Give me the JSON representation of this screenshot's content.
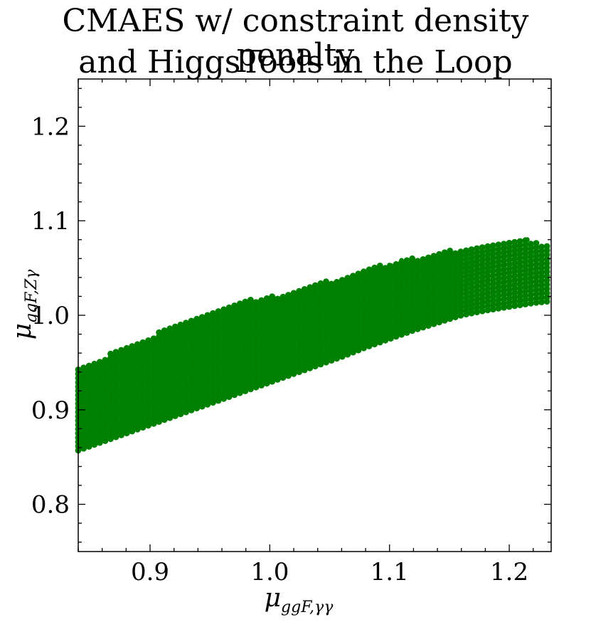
{
  "chart_data": {
    "type": "scatter",
    "title_lines": [
      "CMAES w/ constraint density penalty",
      "and HiggsTools in the Loop"
    ],
    "xlabel_main": "μ",
    "xlabel_sub": "ggF,γγ",
    "ylabel_main": "μ",
    "ylabel_sub": "ggF,Zγ",
    "xlim": [
      0.84,
      1.235
    ],
    "ylim": [
      0.75,
      1.25
    ],
    "xticks": [
      0.9,
      1.0,
      1.1,
      1.2
    ],
    "yticks": [
      0.8,
      0.9,
      1.0,
      1.1,
      1.2
    ],
    "xtick_labels": [
      "0.9",
      "1.0",
      "1.1",
      "1.2"
    ],
    "ytick_labels": [
      "0.8",
      "0.9",
      "1.0",
      "1.1",
      "1.2"
    ],
    "grid": false,
    "marker_color": "#008000",
    "series": [
      {
        "points_upper_edge": [
          [
            0.84,
            0.943
          ],
          [
            0.86,
            0.955
          ],
          [
            0.88,
            0.967
          ],
          [
            0.9,
            0.978
          ],
          [
            0.92,
            0.99
          ],
          [
            0.94,
            1.0
          ],
          [
            0.96,
            1.01
          ],
          [
            0.98,
            1.016
          ],
          [
            1.0,
            1.02
          ],
          [
            1.02,
            1.025
          ],
          [
            1.04,
            1.033
          ],
          [
            1.06,
            1.041
          ],
          [
            1.08,
            1.049
          ],
          [
            1.1,
            1.055
          ],
          [
            1.12,
            1.061
          ],
          [
            1.14,
            1.066
          ],
          [
            1.16,
            1.071
          ],
          [
            1.18,
            1.076
          ],
          [
            1.2,
            1.08
          ],
          [
            1.21,
            1.081
          ],
          [
            1.22,
            1.077
          ],
          [
            1.235,
            1.075
          ]
        ],
        "points_lower_edge": [
          [
            0.84,
            0.857
          ],
          [
            0.86,
            0.866
          ],
          [
            0.88,
            0.875
          ],
          [
            0.9,
            0.884
          ],
          [
            0.92,
            0.893
          ],
          [
            0.94,
            0.902
          ],
          [
            0.96,
            0.911
          ],
          [
            0.98,
            0.92
          ],
          [
            1.0,
            0.929
          ],
          [
            1.02,
            0.938
          ],
          [
            1.04,
            0.947
          ],
          [
            1.06,
            0.956
          ],
          [
            1.08,
            0.966
          ],
          [
            1.1,
            0.975
          ],
          [
            1.12,
            0.984
          ],
          [
            1.14,
            0.992
          ],
          [
            1.16,
            1.0
          ],
          [
            1.18,
            1.005
          ],
          [
            1.2,
            1.009
          ],
          [
            1.22,
            1.013
          ],
          [
            1.235,
            1.015
          ]
        ],
        "outlier_points": [
          [
            1.11,
            1.058
          ],
          [
            1.1,
            1.053
          ],
          [
            1.215,
            1.08
          ]
        ]
      }
    ]
  }
}
